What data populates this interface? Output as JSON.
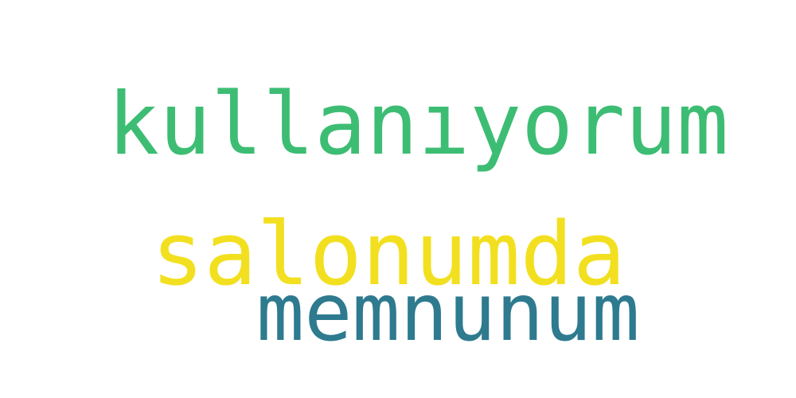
{
  "words": [
    {
      "text": "kullanıyorum",
      "color": "#3dbd73"
    },
    {
      "text": "salonumda",
      "color": "#f2e020"
    },
    {
      "text": "memnunum",
      "color": "#2e7a8f"
    }
  ]
}
